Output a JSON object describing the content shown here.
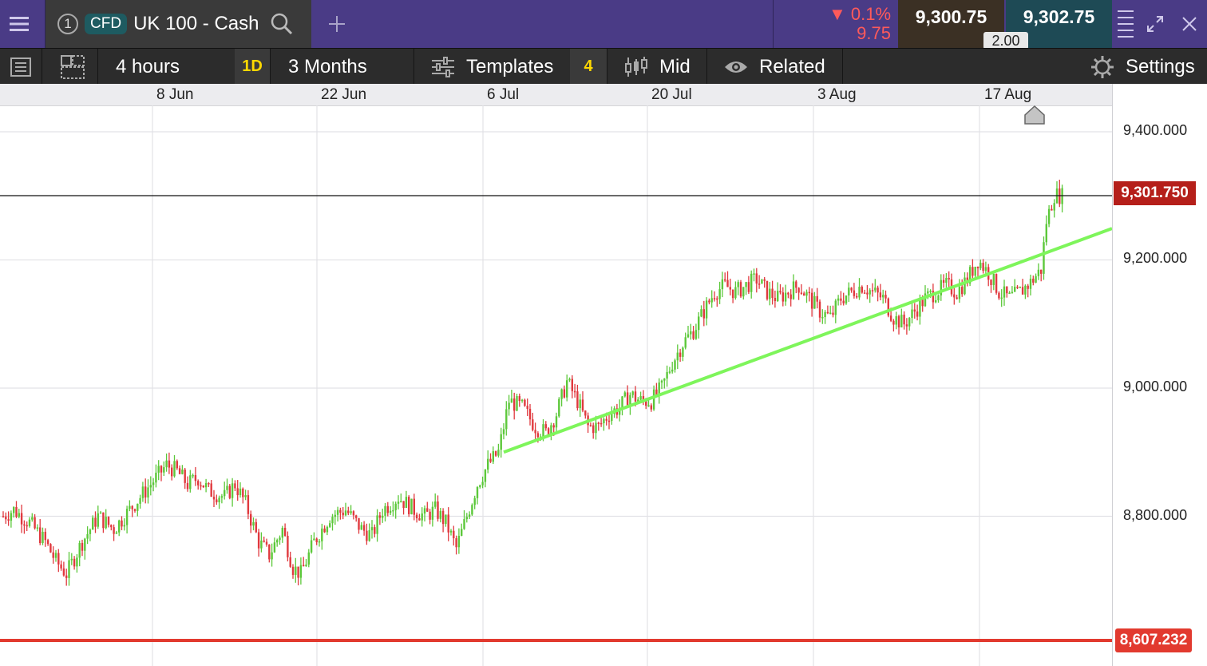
{
  "instrument": {
    "number": "1",
    "type_badge": "CFD",
    "name": "UK 100 - Cash"
  },
  "quote": {
    "change_percent": "▼ 0.1%",
    "change_points": "9.75",
    "sell": "9,300.75",
    "buy": "9,302.75",
    "spread": "2.00"
  },
  "toolbar": {
    "interval": "4 hours",
    "period_badge": "1D",
    "range": "3 Months",
    "templates": "Templates",
    "templates_count": "4",
    "price_type": "Mid",
    "related": "Related",
    "settings": "Settings"
  },
  "colors": {
    "topbar": "#4a3b86",
    "toolbar": "#2c2c2c",
    "up_candle": "#5cc83a",
    "down_candle": "#e0393e",
    "trendline": "#7ef55b",
    "current_price": "#c0271d",
    "sell_box": "#3b3024",
    "buy_box": "#1e4a55",
    "badge_yellow": "#ffd800"
  },
  "icons": [
    "menu-icon",
    "search-icon",
    "add-tab-icon",
    "expand-icon",
    "close-icon",
    "list-icon",
    "layout-icon",
    "templates-icon",
    "candles-icon",
    "eye-icon",
    "gear-icon"
  ],
  "chart_data": {
    "type": "candlestick",
    "x_ticks": [
      "8 Jun",
      "22 Jun",
      "6 Jul",
      "20 Jul",
      "3 Aug",
      "17 Aug"
    ],
    "y_ticks": [
      "9,400.000",
      "9,200.000",
      "9,000.000",
      "8,800.000"
    ],
    "y_range": [
      8565,
      9435
    ],
    "current_price": "9,301.750",
    "alert_level": "8,607.232",
    "interval": "4 hours",
    "close_path": [
      [
        0,
        8800
      ],
      [
        4,
        8810
      ],
      [
        10,
        8790
      ],
      [
        16,
        8760
      ],
      [
        20,
        8730
      ],
      [
        24,
        8710
      ],
      [
        30,
        8760
      ],
      [
        36,
        8800
      ],
      [
        42,
        8780
      ],
      [
        48,
        8810
      ],
      [
        54,
        8840
      ],
      [
        58,
        8860
      ],
      [
        62,
        8880
      ],
      [
        66,
        8870
      ],
      [
        70,
        8850
      ],
      [
        74,
        8860
      ],
      [
        78,
        8840
      ],
      [
        84,
        8830
      ],
      [
        88,
        8850
      ],
      [
        92,
        8820
      ],
      [
        97,
        8760
      ],
      [
        101,
        8740
      ],
      [
        106,
        8780
      ],
      [
        110,
        8720
      ],
      [
        113,
        8710
      ],
      [
        118,
        8760
      ],
      [
        124,
        8800
      ],
      [
        130,
        8810
      ],
      [
        136,
        8780
      ],
      [
        140,
        8770
      ],
      [
        144,
        8810
      ],
      [
        150,
        8830
      ],
      [
        156,
        8810
      ],
      [
        160,
        8800
      ],
      [
        164,
        8810
      ],
      [
        168,
        8790
      ],
      [
        172,
        8750
      ],
      [
        176,
        8800
      ],
      [
        180,
        8850
      ],
      [
        184,
        8880
      ],
      [
        188,
        8900
      ],
      [
        192,
        8980
      ],
      [
        197,
        8970
      ],
      [
        202,
        8940
      ],
      [
        206,
        8930
      ],
      [
        210,
        8960
      ],
      [
        214,
        9010
      ],
      [
        218,
        8980
      ],
      [
        222,
        8940
      ],
      [
        226,
        8940
      ],
      [
        230,
        8960
      ],
      [
        234,
        8970
      ],
      [
        238,
        8990
      ],
      [
        242,
        8980
      ],
      [
        246,
        8980
      ],
      [
        250,
        9000
      ],
      [
        254,
        9040
      ],
      [
        258,
        9070
      ],
      [
        262,
        9090
      ],
      [
        266,
        9120
      ],
      [
        270,
        9150
      ],
      [
        274,
        9160
      ],
      [
        278,
        9150
      ],
      [
        282,
        9160
      ],
      [
        286,
        9170
      ],
      [
        290,
        9150
      ],
      [
        294,
        9140
      ],
      [
        298,
        9150
      ],
      [
        302,
        9160
      ],
      [
        306,
        9140
      ],
      [
        310,
        9120
      ],
      [
        314,
        9110
      ],
      [
        318,
        9140
      ],
      [
        322,
        9150
      ],
      [
        326,
        9160
      ],
      [
        330,
        9150
      ],
      [
        334,
        9140
      ],
      [
        338,
        9110
      ],
      [
        342,
        9100
      ],
      [
        346,
        9120
      ],
      [
        350,
        9140
      ],
      [
        354,
        9150
      ],
      [
        358,
        9160
      ],
      [
        362,
        9150
      ],
      [
        366,
        9170
      ],
      [
        370,
        9200
      ],
      [
        374,
        9180
      ],
      [
        378,
        9150
      ],
      [
        382,
        9140
      ],
      [
        386,
        9150
      ],
      [
        390,
        9165
      ],
      [
        394,
        9185
      ],
      [
        396,
        9260
      ],
      [
        399,
        9302
      ],
      [
        402,
        9300
      ]
    ],
    "trendline": {
      "from": [
        190,
        8900
      ],
      "to": [
        405,
        9225
      ]
    }
  }
}
